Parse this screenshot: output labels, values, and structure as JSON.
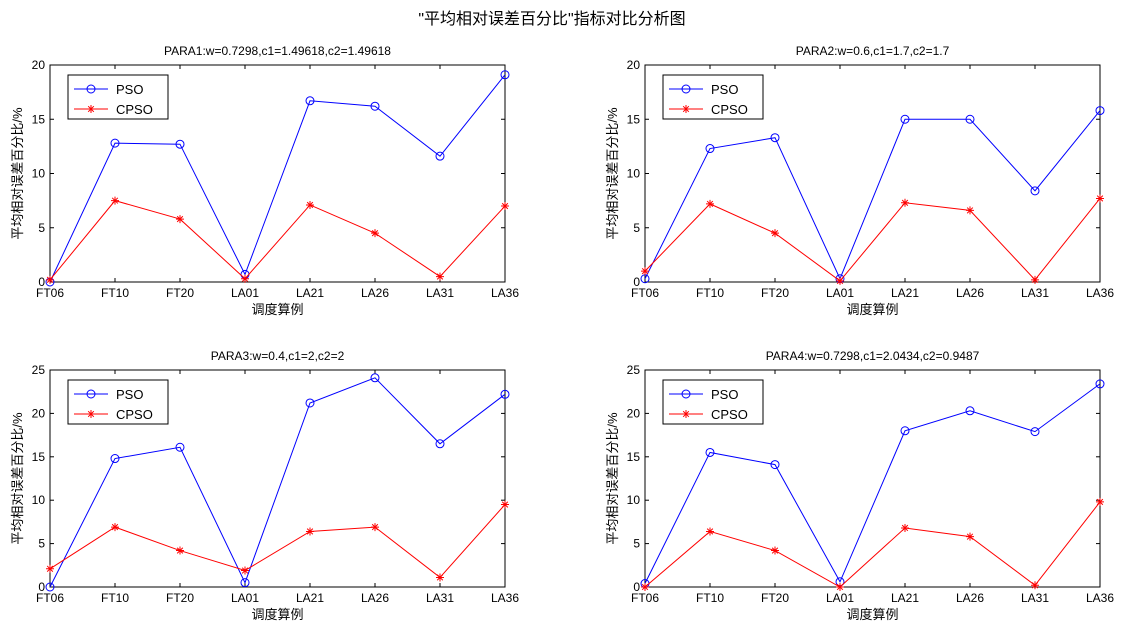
{
  "figure_title": "\"平均相对误差百分比\"指标对比分析图",
  "colors": {
    "pso": "#0000ff",
    "cpso": "#ff0000",
    "axis": "#000000"
  },
  "chart_data": [
    {
      "type": "line",
      "title": "PARA1:w=0.7298,c1=1.49618,c2=1.49618",
      "xlabel": "调度算例",
      "ylabel": "平均相对误差百分比/%",
      "categories": [
        "FT06",
        "FT10",
        "FT20",
        "LA01",
        "LA21",
        "LA26",
        "LA31",
        "LA36"
      ],
      "ylim": [
        0,
        20
      ],
      "yticks": [
        0,
        5,
        10,
        15,
        20
      ],
      "legend": "top-left",
      "series": [
        {
          "name": "PSO",
          "marker": "circle",
          "values": [
            0.0,
            12.8,
            12.7,
            0.7,
            16.7,
            16.2,
            11.6,
            19.1
          ]
        },
        {
          "name": "CPSO",
          "marker": "star",
          "values": [
            0.2,
            7.5,
            5.8,
            0.3,
            7.1,
            4.5,
            0.5,
            7.0
          ]
        }
      ]
    },
    {
      "type": "line",
      "title": "PARA2:w=0.6,c1=1.7,c2=1.7",
      "xlabel": "调度算例",
      "ylabel": "平均相对误差百分比/%",
      "categories": [
        "FT06",
        "FT10",
        "FT20",
        "LA01",
        "LA21",
        "LA26",
        "LA31",
        "LA36"
      ],
      "ylim": [
        0,
        20
      ],
      "yticks": [
        0,
        5,
        10,
        15,
        20
      ],
      "legend": "top-left",
      "series": [
        {
          "name": "PSO",
          "marker": "circle",
          "values": [
            0.3,
            12.3,
            13.3,
            0.3,
            15.0,
            15.0,
            8.4,
            15.8
          ]
        },
        {
          "name": "CPSO",
          "marker": "star",
          "values": [
            1.0,
            7.2,
            4.5,
            0.1,
            7.3,
            6.6,
            0.2,
            7.7
          ]
        }
      ]
    },
    {
      "type": "line",
      "title": "PARA3:w=0.4,c1=2,c2=2",
      "xlabel": "调度算例",
      "ylabel": "平均相对误差百分比/%",
      "categories": [
        "FT06",
        "FT10",
        "FT20",
        "LA01",
        "LA21",
        "LA26",
        "LA31",
        "LA36"
      ],
      "ylim": [
        0,
        25
      ],
      "yticks": [
        0,
        5,
        10,
        15,
        20,
        25
      ],
      "legend": "top-left",
      "series": [
        {
          "name": "PSO",
          "marker": "circle",
          "values": [
            0.0,
            14.8,
            16.1,
            0.5,
            21.2,
            24.1,
            16.5,
            22.2
          ]
        },
        {
          "name": "CPSO",
          "marker": "star",
          "values": [
            2.1,
            6.9,
            4.2,
            1.9,
            6.4,
            6.9,
            1.1,
            9.5
          ]
        }
      ]
    },
    {
      "type": "line",
      "title": "PARA4:w=0.7298,c1=2.0434,c2=0.9487",
      "xlabel": "调度算例",
      "ylabel": "平均相对误差百分比/%",
      "categories": [
        "FT06",
        "FT10",
        "FT20",
        "LA01",
        "LA21",
        "LA26",
        "LA31",
        "LA36"
      ],
      "ylim": [
        0,
        25
      ],
      "yticks": [
        0,
        5,
        10,
        15,
        20,
        25
      ],
      "legend": "top-left",
      "series": [
        {
          "name": "PSO",
          "marker": "circle",
          "values": [
            0.4,
            15.5,
            14.1,
            0.6,
            18.0,
            20.3,
            17.9,
            23.4
          ]
        },
        {
          "name": "CPSO",
          "marker": "star",
          "values": [
            0.0,
            6.4,
            4.2,
            0.0,
            6.8,
            5.8,
            0.2,
            9.8
          ]
        }
      ]
    }
  ]
}
